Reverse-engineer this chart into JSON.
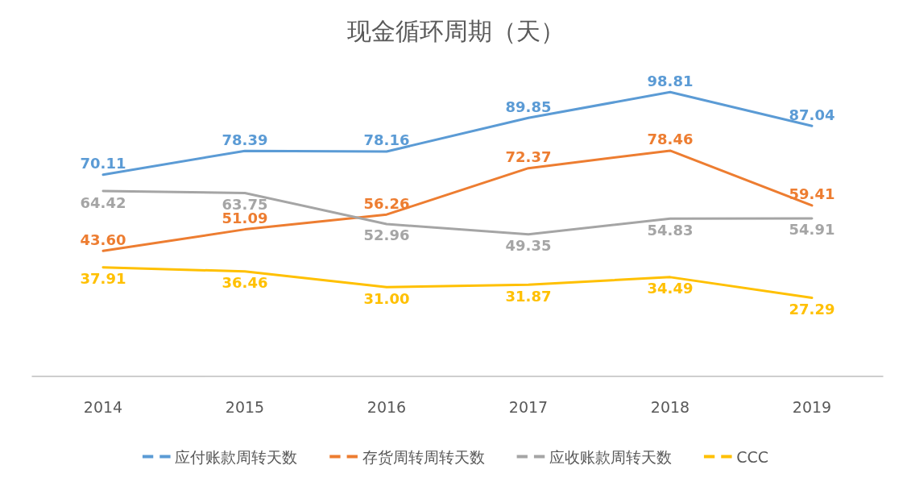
{
  "chart_data": {
    "type": "line",
    "title": "现金循环周期（天）",
    "categories": [
      "2014",
      "2015",
      "2016",
      "2017",
      "2018",
      "2019"
    ],
    "series": [
      {
        "name": "应付账款周转天数",
        "color": "#5b9bd5",
        "values": [
          70.11,
          78.39,
          78.16,
          89.85,
          98.81,
          87.04
        ],
        "value_labels": [
          "70.11",
          "78.39",
          "78.16",
          "89.85",
          "98.81",
          "87.04"
        ]
      },
      {
        "name": "存货周转周转天数",
        "color": "#ed7d31",
        "values": [
          43.6,
          51.09,
          56.26,
          72.37,
          78.46,
          59.41
        ],
        "value_labels": [
          "43.60",
          "51.09",
          "56.26",
          "72.37",
          "78.46",
          "59.41"
        ]
      },
      {
        "name": "应收账款周转天数",
        "color": "#a5a5a5",
        "values": [
          64.42,
          63.75,
          52.96,
          49.35,
          54.83,
          54.91
        ],
        "value_labels": [
          "64.42",
          "63.75",
          "52.96",
          "49.35",
          "54.83",
          "54.91"
        ]
      },
      {
        "name": "CCC",
        "color": "#ffc000",
        "values": [
          37.91,
          36.46,
          31.0,
          31.87,
          34.49,
          27.29
        ],
        "value_labels": [
          "37.91",
          "36.46",
          "31.00",
          "31.87",
          "34.49",
          "27.29"
        ]
      }
    ],
    "legend": "bottom",
    "grid": false,
    "marker": "none",
    "line_style": "solid"
  }
}
